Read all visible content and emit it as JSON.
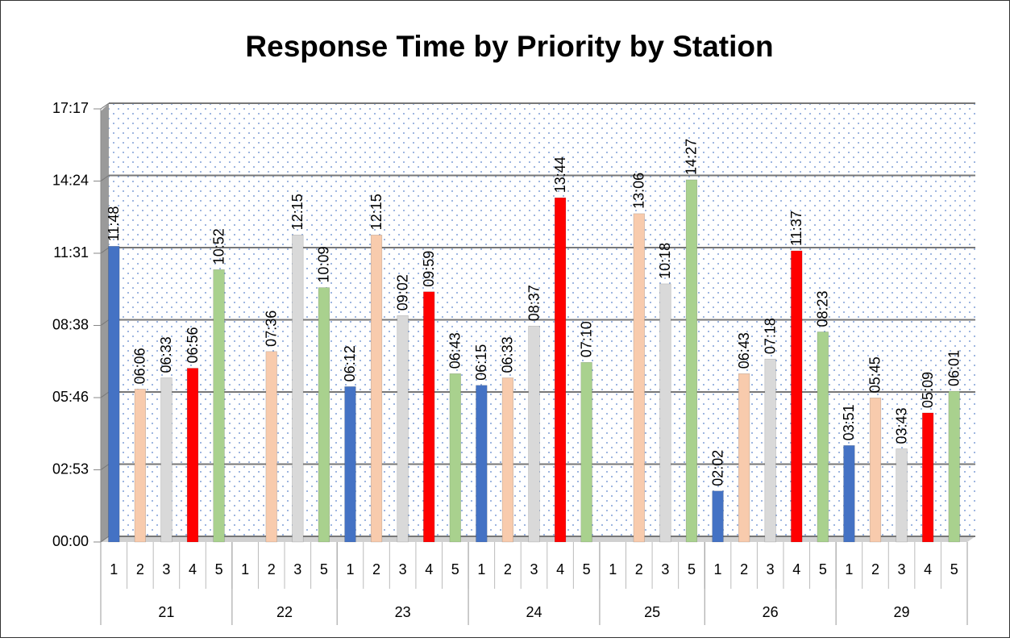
{
  "chart_data": {
    "type": "bar",
    "title": "Response Time by Priority by Station",
    "ylim": [
      0,
      1036.8
    ],
    "yticks": [
      {
        "value": 0,
        "label": "00:00"
      },
      {
        "value": 172.8,
        "label": "02:53"
      },
      {
        "value": 345.6,
        "label": "05:46"
      },
      {
        "value": 518.4,
        "label": "08:38"
      },
      {
        "value": 691.2,
        "label": "11:31"
      },
      {
        "value": 864,
        "label": "14:24"
      },
      {
        "value": 1036.8,
        "label": "17:17"
      }
    ],
    "grid": true,
    "groups": [
      {
        "name": "21",
        "categories": [
          "1",
          "2",
          "3",
          "4",
          "5"
        ],
        "values": [
          708,
          366,
          393,
          416,
          652
        ],
        "value_labels": [
          "11:48",
          "06:06",
          "06:33",
          "06:56",
          "10:52"
        ],
        "colors": [
          "#4472c4",
          "#f8cbad",
          "#d9d9d9",
          "#ff0000",
          "#a9d18e"
        ]
      },
      {
        "name": "22",
        "categories": [
          "1",
          "2",
          "3",
          "5"
        ],
        "values": [
          null,
          456,
          735,
          609
        ],
        "value_labels": [
          null,
          "07:36",
          "12:15",
          "10:09"
        ],
        "colors": [
          "#4472c4",
          "#f8cbad",
          "#d9d9d9",
          "#a9d18e"
        ]
      },
      {
        "name": "23",
        "categories": [
          "1",
          "2",
          "3",
          "4",
          "5"
        ],
        "values": [
          372,
          735,
          542,
          599,
          403
        ],
        "value_labels": [
          "06:12",
          "12:15",
          "09:02",
          "09:59",
          "06:43"
        ],
        "colors": [
          "#4472c4",
          "#f8cbad",
          "#d9d9d9",
          "#ff0000",
          "#a9d18e"
        ]
      },
      {
        "name": "24",
        "categories": [
          "1",
          "2",
          "3",
          "4",
          "5"
        ],
        "values": [
          375,
          393,
          517,
          824,
          430
        ],
        "value_labels": [
          "06:15",
          "06:33",
          "08:37",
          "13:44",
          "07:10"
        ],
        "colors": [
          "#4472c4",
          "#f8cbad",
          "#d9d9d9",
          "#ff0000",
          "#a9d18e"
        ]
      },
      {
        "name": "25",
        "categories": [
          "1",
          "2",
          "3",
          "5"
        ],
        "values": [
          null,
          786,
          618,
          867
        ],
        "value_labels": [
          null,
          "13:06",
          "10:18",
          "14:27"
        ],
        "colors": [
          "#4472c4",
          "#f8cbad",
          "#d9d9d9",
          "#a9d18e"
        ]
      },
      {
        "name": "26",
        "categories": [
          "1",
          "2",
          "3",
          "4",
          "5"
        ],
        "values": [
          122,
          403,
          438,
          697,
          503
        ],
        "value_labels": [
          "02:02",
          "06:43",
          "07:18",
          "11:37",
          "08:23"
        ],
        "colors": [
          "#4472c4",
          "#f8cbad",
          "#d9d9d9",
          "#ff0000",
          "#a9d18e"
        ]
      },
      {
        "name": "29",
        "categories": [
          "1",
          "2",
          "3",
          "4",
          "5"
        ],
        "values": [
          231,
          345,
          223,
          309,
          361
        ],
        "value_labels": [
          "03:51",
          "05:45",
          "03:43",
          "05:09",
          "06:01"
        ],
        "colors": [
          "#4472c4",
          "#f8cbad",
          "#d9d9d9",
          "#ff0000",
          "#a9d18e"
        ]
      }
    ]
  }
}
